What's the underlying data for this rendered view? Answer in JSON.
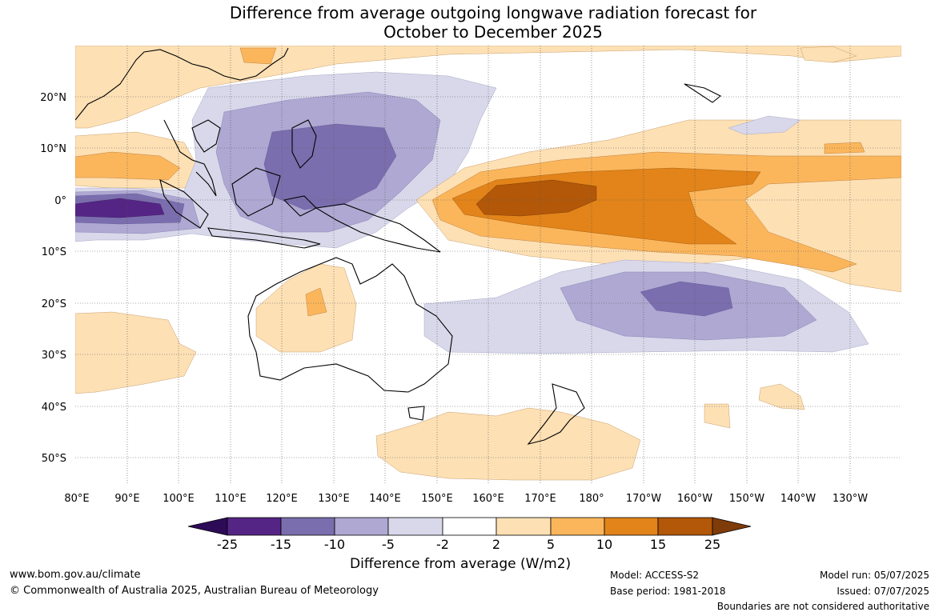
{
  "title": {
    "line1": "Difference from average outgoing longwave radiation forecast for",
    "line2": "October to December 2025"
  },
  "axes": {
    "lon_labels": [
      "80°E",
      "90°E",
      "100°E",
      "110°E",
      "120°E",
      "130°E",
      "140°E",
      "150°E",
      "160°E",
      "170°E",
      "180°",
      "170°W",
      "160°W",
      "150°W",
      "140°W",
      "130°W"
    ],
    "lat_labels": [
      "20°N",
      "10°N",
      "0°",
      "10°S",
      "20°S",
      "30°S",
      "40°S",
      "50°S"
    ]
  },
  "colorbar": {
    "title": "Difference from average (W/m2)",
    "tick_labels": [
      "-25",
      "-15",
      "-10",
      "-5",
      "-2",
      "2",
      "5",
      "10",
      "15",
      "25"
    ],
    "colors": [
      "#2d0b57",
      "#552585",
      "#7b6eae",
      "#aea8d2",
      "#d8d8ea",
      "#ffffff",
      "#fde0b4",
      "#fbb65c",
      "#e2841a",
      "#b35808",
      "#7f3b08"
    ]
  },
  "footer": {
    "website": "www.bom.gov.au/climate",
    "copyright": "© Commonwealth of Australia 2025, Australian Bureau of Meteorology",
    "model": "Model: ACCESS-S2",
    "base_period": "Base period: 1981-2018",
    "model_run": "Model run: 05/07/2025",
    "issued": "Issued: 07/07/2025",
    "disclaimer": "Boundaries are not considered authoritative"
  }
}
